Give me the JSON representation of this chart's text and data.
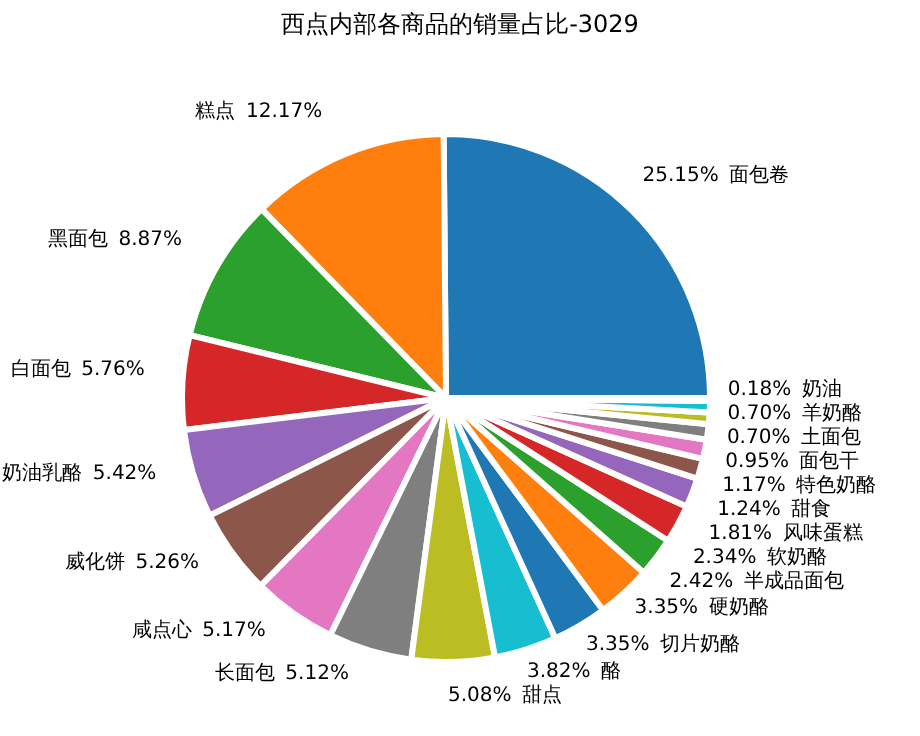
{
  "chart_data": {
    "type": "pie",
    "title": "西点内部各商品的销量占比-3029",
    "categories": [
      "面包卷",
      "糕点",
      "黑面包",
      "白面包",
      "奶油乳酪",
      "威化饼",
      "咸点心",
      "长面包",
      "甜点",
      "酪",
      "切片奶酪",
      "硬奶酪",
      "半成品面包",
      "软奶酪",
      "风味蛋糕",
      "甜食",
      "特色奶酪",
      "面包干",
      "土面包",
      "羊奶酪",
      "奶油"
    ],
    "values": [
      25.15,
      12.17,
      8.87,
      5.76,
      5.42,
      5.26,
      5.17,
      5.12,
      5.08,
      3.82,
      3.35,
      3.35,
      2.42,
      2.34,
      1.81,
      1.24,
      1.17,
      0.95,
      0.7,
      0.7,
      0.18
    ],
    "colors": [
      "#1f77b4",
      "#ff7f0e",
      "#2ca02c",
      "#d62728",
      "#9467bd",
      "#8c564b",
      "#e377c2",
      "#7f7f7f",
      "#bcbd22",
      "#17becf",
      "#1f77b4",
      "#ff7f0e",
      "#2ca02c",
      "#d62728",
      "#9467bd",
      "#8c564b",
      "#e377c2",
      "#7f7f7f",
      "#bcbd22",
      "#17becf",
      "#1f77b4"
    ],
    "value_labels": [
      "25.15%",
      "12.17%",
      "8.87%",
      "5.76%",
      "5.42%",
      "5.26%",
      "5.17%",
      "5.12%",
      "5.08%",
      "3.82%",
      "3.35%",
      "3.35%",
      "2.42%",
      "2.34%",
      "1.81%",
      "1.24%",
      "1.17%",
      "0.95%",
      "0.70%",
      "0.70%",
      "0.18%"
    ]
  }
}
